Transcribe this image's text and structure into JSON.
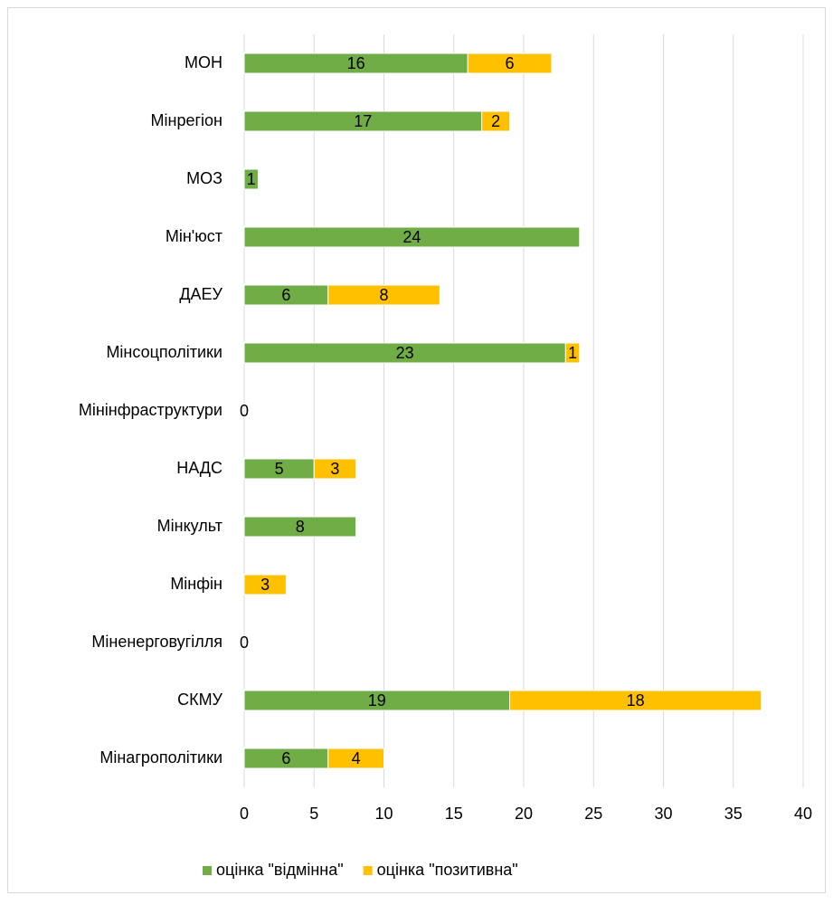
{
  "chart_data": {
    "type": "stacked-barh",
    "categories": [
      "МОН",
      "Мінрегіон",
      "МОЗ",
      "Мін'юст",
      "ДАЕУ",
      "Мінсоцполітики",
      "Мінінфраструктури",
      "НАДС",
      "Мінкульт",
      "Мінфін",
      "Міненерговугілля",
      "СКМУ",
      "Мінагрополітики"
    ],
    "series": [
      {
        "name": "оцінка \"відмінна\"",
        "color": "#70ad47",
        "values": [
          16,
          17,
          1,
          24,
          6,
          23,
          0,
          5,
          8,
          null,
          0,
          19,
          6
        ]
      },
      {
        "name": "оцінка \"позитивна\"",
        "color": "#ffc000",
        "values": [
          6,
          2,
          null,
          null,
          8,
          1,
          null,
          3,
          null,
          3,
          null,
          18,
          4
        ]
      }
    ],
    "xlim": [
      0,
      40
    ],
    "xticks": [
      0,
      5,
      10,
      15,
      20,
      25,
      30,
      35,
      40
    ],
    "grid": true,
    "legend": "bottom"
  }
}
